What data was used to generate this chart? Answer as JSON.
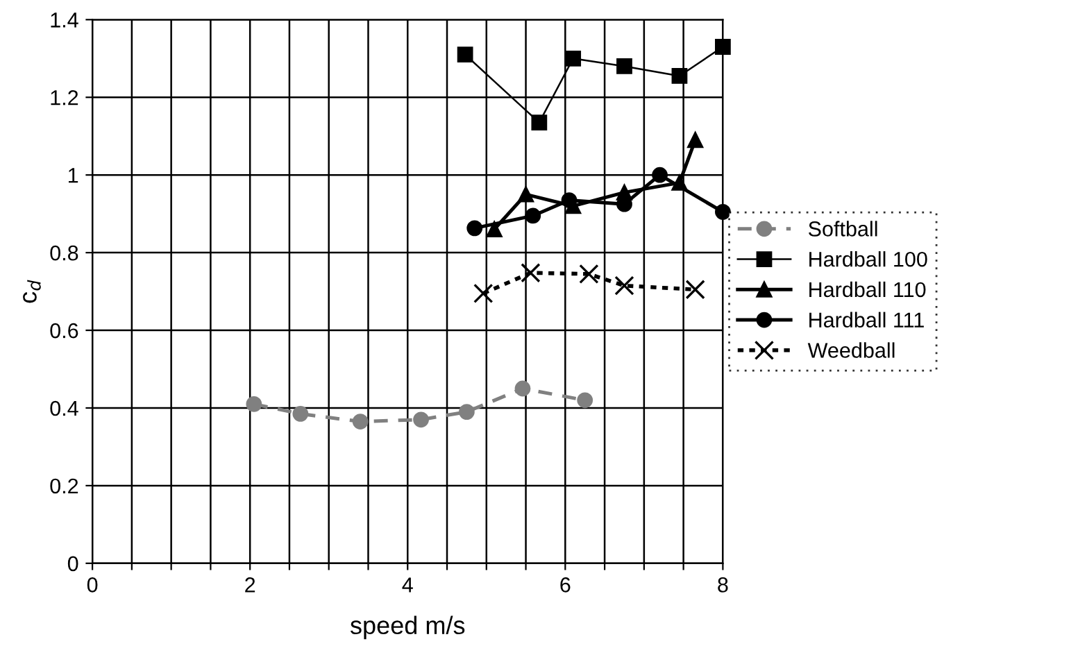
{
  "chart_data": {
    "type": "line",
    "xlabel": "speed m/s",
    "ylabel": "c$_{d}$",
    "xlim": [
      0,
      8
    ],
    "ylim": [
      0,
      1.4
    ],
    "xticks": [
      0,
      {
        "value": 0.5,
        "label": null
      },
      {
        "value": 1,
        "label": null
      },
      {
        "value": 1.5,
        "label": null
      },
      2,
      {
        "value": 2.5,
        "label": null
      },
      {
        "value": 3,
        "label": null
      },
      {
        "value": 3.5,
        "label": null
      },
      4,
      {
        "value": 4.5,
        "label": null
      },
      {
        "value": 5,
        "label": null
      },
      {
        "value": 5.5,
        "label": null
      },
      6,
      {
        "value": 6.5,
        "label": null
      },
      {
        "value": 7,
        "label": null
      },
      {
        "value": 7.5,
        "label": null
      },
      8
    ],
    "yticks": [
      0,
      0.2,
      0.4,
      0.6,
      0.8,
      1,
      1.2,
      1.4
    ],
    "grid": true,
    "legend": "right",
    "series": [
      {
        "name": "Softball",
        "color": "#808080",
        "marker": "circle",
        "line_style": "dashed",
        "x": [
          2.05,
          2.64,
          3.4,
          4.17,
          4.75,
          5.46,
          6.25
        ],
        "values": [
          0.41,
          0.385,
          0.365,
          0.37,
          0.39,
          0.45,
          0.42
        ]
      },
      {
        "name": "Hardball 100",
        "color": "#000000",
        "marker": "square",
        "line_style": "solid",
        "x": [
          4.73,
          5.67,
          6.1,
          6.75,
          7.45,
          8.0
        ],
        "values": [
          1.31,
          1.135,
          1.3,
          1.28,
          1.255,
          1.33
        ]
      },
      {
        "name": "Hardball 110",
        "color": "#000000",
        "marker": "triangle",
        "line_style": "solid",
        "x": [
          5.1,
          5.5,
          6.1,
          6.75,
          7.45,
          7.65
        ],
        "values": [
          0.86,
          0.95,
          0.92,
          0.955,
          0.98,
          1.09
        ]
      },
      {
        "name": "Hardball 111",
        "color": "#000000",
        "marker": "circle",
        "line_style": "solid",
        "x": [
          4.85,
          5.59,
          6.05,
          6.75,
          7.2,
          8.0
        ],
        "values": [
          0.863,
          0.895,
          0.935,
          0.925,
          1.0,
          0.905
        ]
      },
      {
        "name": "Weedball",
        "color": "#000000",
        "marker": "cross",
        "line_style": "dotted",
        "x": [
          4.96,
          5.56,
          6.3,
          6.75,
          7.65
        ],
        "values": [
          0.695,
          0.748,
          0.745,
          0.715,
          0.705
        ]
      }
    ]
  }
}
